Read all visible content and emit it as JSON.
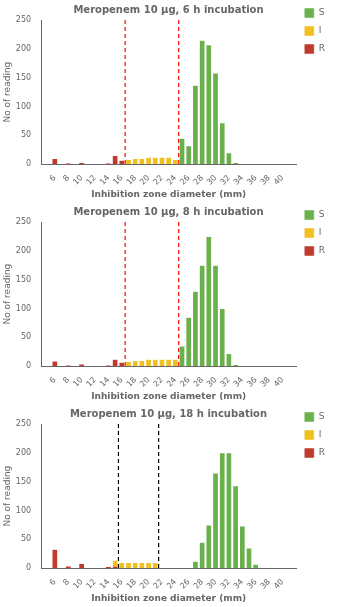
{
  "chart_data": [
    {
      "type": "bar",
      "title": "Meropenem 10 μg, 6 h incubation",
      "xlabel": "Inhibition zone diameter (mm)",
      "ylabel": "No of reading",
      "x": [
        6,
        7,
        8,
        9,
        10,
        11,
        12,
        13,
        14,
        15,
        16,
        17,
        18,
        19,
        20,
        21,
        22,
        23,
        24,
        25,
        26,
        27,
        28,
        29,
        30,
        31,
        32,
        33,
        34,
        35,
        36,
        37,
        38,
        39,
        40
      ],
      "series": [
        {
          "name": "S",
          "color": "#6ab04c",
          "values": [
            null,
            null,
            null,
            null,
            null,
            null,
            null,
            null,
            null,
            null,
            null,
            null,
            null,
            null,
            null,
            null,
            null,
            null,
            null,
            45,
            32,
            137,
            215,
            207,
            158,
            72,
            20,
            3,
            null,
            null,
            null,
            null,
            null,
            null,
            null
          ]
        },
        {
          "name": "I",
          "color": "#f0c020",
          "values": [
            null,
            null,
            null,
            null,
            null,
            null,
            null,
            null,
            null,
            null,
            null,
            8,
            10,
            10,
            12,
            12,
            12,
            12,
            8,
            null,
            null,
            null,
            null,
            null,
            null,
            null,
            null,
            null,
            null,
            null,
            null,
            null,
            null,
            null,
            null
          ]
        },
        {
          "name": "R",
          "color": "#c0392b",
          "values": [
            10,
            null,
            2,
            null,
            3,
            null,
            null,
            null,
            2,
            15,
            7,
            null,
            null,
            null,
            null,
            null,
            null,
            null,
            null,
            null,
            null,
            null,
            null,
            null,
            null,
            null,
            null,
            null,
            null,
            null,
            null,
            null,
            null,
            null,
            null
          ]
        }
      ],
      "vlines": {
        "x": [
          16.5,
          24.5
        ],
        "color": "red",
        "line_style": "dashed"
      },
      "xlim": [
        5,
        41
      ],
      "xticks": [
        6,
        8,
        10,
        12,
        14,
        16,
        18,
        20,
        22,
        24,
        26,
        28,
        30,
        32,
        34,
        36,
        38,
        40
      ],
      "ylim": [
        0,
        250
      ],
      "yticks": [
        0,
        50,
        100,
        150,
        200,
        250
      ],
      "stacked": true,
      "grid": false,
      "legend": "right"
    },
    {
      "type": "bar",
      "title": "Meropenem 10 μg, 8 h incubation",
      "xlabel": "Inhibition zone diameter (mm)",
      "ylabel": "No of reading",
      "x": [
        6,
        7,
        8,
        9,
        10,
        11,
        12,
        13,
        14,
        15,
        16,
        17,
        18,
        19,
        20,
        21,
        22,
        23,
        24,
        25,
        26,
        27,
        28,
        29,
        30,
        31,
        32,
        33,
        34,
        35,
        36,
        37,
        38,
        39,
        40
      ],
      "series": [
        {
          "name": "S",
          "color": "#6ab04c",
          "values": [
            null,
            null,
            null,
            null,
            null,
            null,
            null,
            null,
            null,
            null,
            null,
            null,
            null,
            null,
            null,
            null,
            null,
            null,
            null,
            35,
            85,
            130,
            175,
            225,
            175,
            100,
            22,
            3,
            null,
            null,
            null,
            null,
            null,
            null,
            null
          ]
        },
        {
          "name": "I",
          "color": "#f0c020",
          "values": [
            null,
            null,
            null,
            null,
            null,
            null,
            null,
            null,
            null,
            null,
            null,
            8,
            10,
            10,
            12,
            12,
            12,
            12,
            12,
            null,
            null,
            null,
            null,
            null,
            null,
            null,
            null,
            null,
            null,
            null,
            null,
            null,
            null,
            null,
            null
          ]
        },
        {
          "name": "R",
          "color": "#c0392b",
          "values": [
            9,
            null,
            2,
            null,
            4,
            null,
            null,
            null,
            2,
            12,
            7,
            null,
            null,
            null,
            null,
            null,
            null,
            null,
            null,
            null,
            null,
            null,
            null,
            null,
            null,
            null,
            null,
            null,
            null,
            null,
            null,
            null,
            null,
            null,
            null
          ]
        }
      ],
      "vlines": {
        "x": [
          16.5,
          24.5
        ],
        "color": "red",
        "line_style": "dashed"
      },
      "xlim": [
        5,
        41
      ],
      "xticks": [
        6,
        8,
        10,
        12,
        14,
        16,
        18,
        20,
        22,
        24,
        26,
        28,
        30,
        32,
        34,
        36,
        38,
        40
      ],
      "ylim": [
        0,
        250
      ],
      "yticks": [
        0,
        50,
        100,
        150,
        200,
        250
      ],
      "stacked": true,
      "grid": false,
      "legend": "right"
    },
    {
      "type": "bar",
      "title": "Meropenem 10 μg, 18 h incubation",
      "xlabel": "Inhibition zone diameter (mm)",
      "ylabel": "No of reading",
      "x": [
        6,
        7,
        8,
        9,
        10,
        11,
        12,
        13,
        14,
        15,
        16,
        17,
        18,
        19,
        20,
        21,
        22,
        23,
        24,
        25,
        26,
        27,
        28,
        29,
        30,
        31,
        32,
        33,
        34,
        35,
        36,
        37,
        38,
        39,
        40
      ],
      "series": [
        {
          "name": "S",
          "color": "#6ab04c",
          "values": [
            null,
            null,
            null,
            null,
            null,
            null,
            null,
            null,
            null,
            null,
            null,
            null,
            null,
            null,
            null,
            null,
            null,
            null,
            null,
            null,
            null,
            12,
            45,
            75,
            165,
            200,
            200,
            143,
            73,
            35,
            7,
            null,
            null,
            null,
            null
          ]
        },
        {
          "name": "I",
          "color": "#f0c020",
          "values": [
            null,
            null,
            null,
            null,
            null,
            null,
            null,
            null,
            null,
            10,
            10,
            10,
            10,
            10,
            10,
            10,
            null,
            null,
            null,
            null,
            null,
            null,
            null,
            null,
            null,
            null,
            null,
            null,
            null,
            null,
            null,
            null,
            null,
            null,
            null
          ]
        },
        {
          "name": "R",
          "color": "#c0392b",
          "values": [
            33,
            null,
            4,
            null,
            8,
            null,
            null,
            null,
            3,
            4,
            null,
            null,
            null,
            null,
            null,
            null,
            null,
            null,
            null,
            null,
            null,
            null,
            null,
            null,
            null,
            null,
            null,
            null,
            null,
            null,
            null,
            null,
            null,
            null,
            null
          ]
        }
      ],
      "vlines": {
        "x": [
          15.5,
          21.5
        ],
        "color": "black",
        "line_style": "dashed"
      },
      "xlim": [
        5,
        41
      ],
      "xticks": [
        6,
        8,
        10,
        12,
        14,
        16,
        18,
        20,
        22,
        24,
        26,
        28,
        30,
        32,
        34,
        36,
        38,
        40
      ],
      "ylim": [
        0,
        250
      ],
      "yticks": [
        0,
        50,
        100,
        150,
        200,
        250
      ],
      "stacked": true,
      "grid": false,
      "legend": "right"
    }
  ]
}
